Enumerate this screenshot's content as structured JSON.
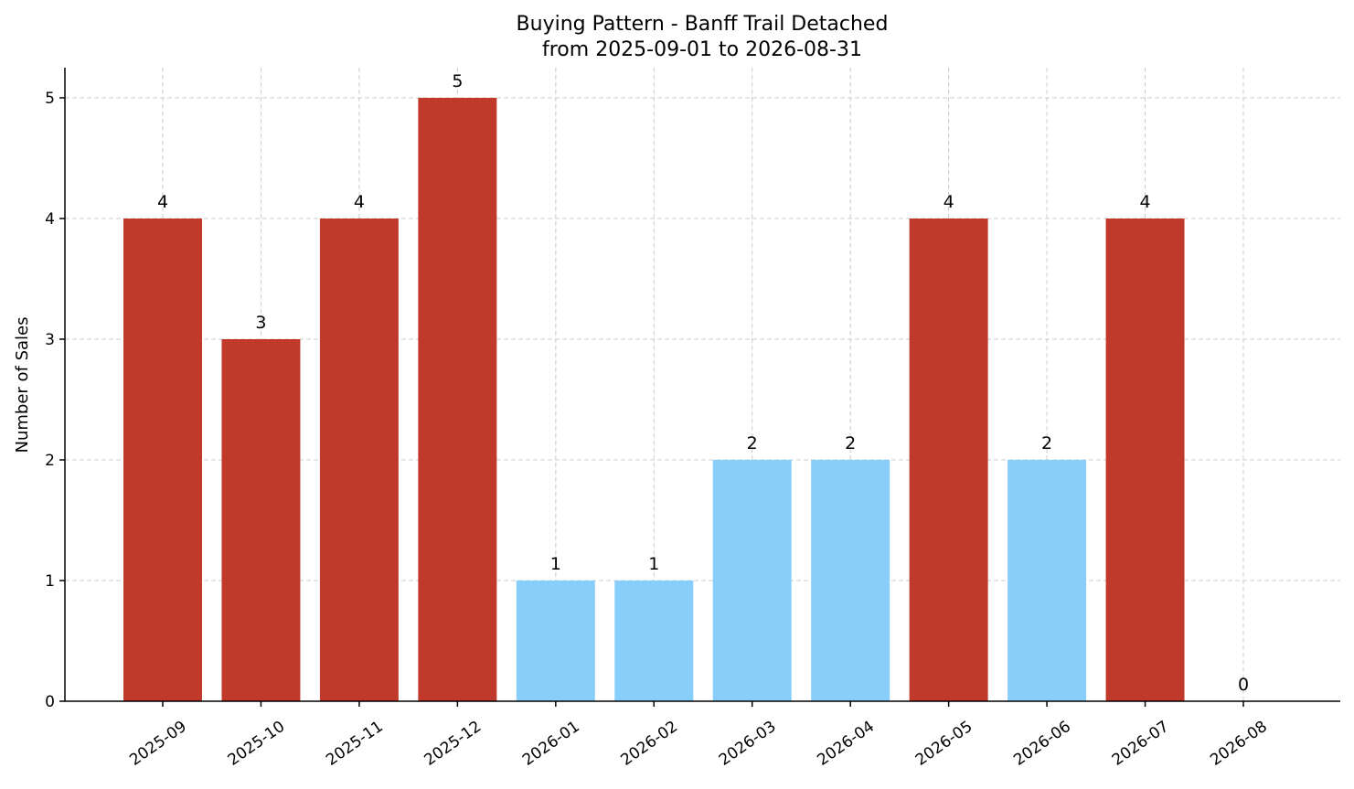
{
  "chart_data": {
    "type": "bar",
    "title": "Buying Pattern - Banff Trail Detached",
    "subtitle": "from 2025-09-01 to 2026-08-31",
    "xlabel": "",
    "ylabel": "Number of Sales",
    "categories": [
      "2025-09",
      "2025-10",
      "2025-11",
      "2025-12",
      "2026-01",
      "2026-02",
      "2026-03",
      "2026-04",
      "2026-05",
      "2026-06",
      "2026-07",
      "2026-08"
    ],
    "values": [
      4,
      3,
      4,
      5,
      1,
      1,
      2,
      2,
      4,
      2,
      4,
      0
    ],
    "bar_colors": [
      "#c0392b",
      "#c0392b",
      "#c0392b",
      "#c0392b",
      "#87cefa",
      "#87cefa",
      "#87cefa",
      "#87cefa",
      "#c0392b",
      "#87cefa",
      "#c0392b",
      "#87cefa"
    ],
    "ylim": [
      0,
      5.25
    ],
    "yticks": [
      0,
      1,
      2,
      3,
      4,
      5
    ],
    "grid": true
  }
}
